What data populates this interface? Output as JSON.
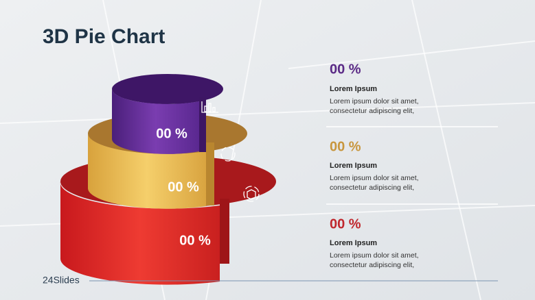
{
  "header": {
    "title": "3D Pie Chart"
  },
  "tiers": [
    {
      "label": "00 %",
      "value_text": "00 %",
      "heading": "Lorem Ipsum",
      "lines": [
        "Lorem ipsum dolor sit amet,",
        "consectetur adipiscing elit,"
      ]
    },
    {
      "label": "00 %",
      "value_text": "00 %",
      "heading": "Lorem Ipsum",
      "lines": [
        "Lorem ipsum dolor sit amet,",
        "consectetur adipiscing elit,"
      ]
    },
    {
      "label": "00 %",
      "value_text": "00 %",
      "heading": "Lorem Ipsum",
      "lines": [
        "Lorem ipsum dolor sit amet,",
        "consectetur adipiscing elit,"
      ]
    }
  ],
  "footer": {
    "logo": "24Slides"
  }
}
